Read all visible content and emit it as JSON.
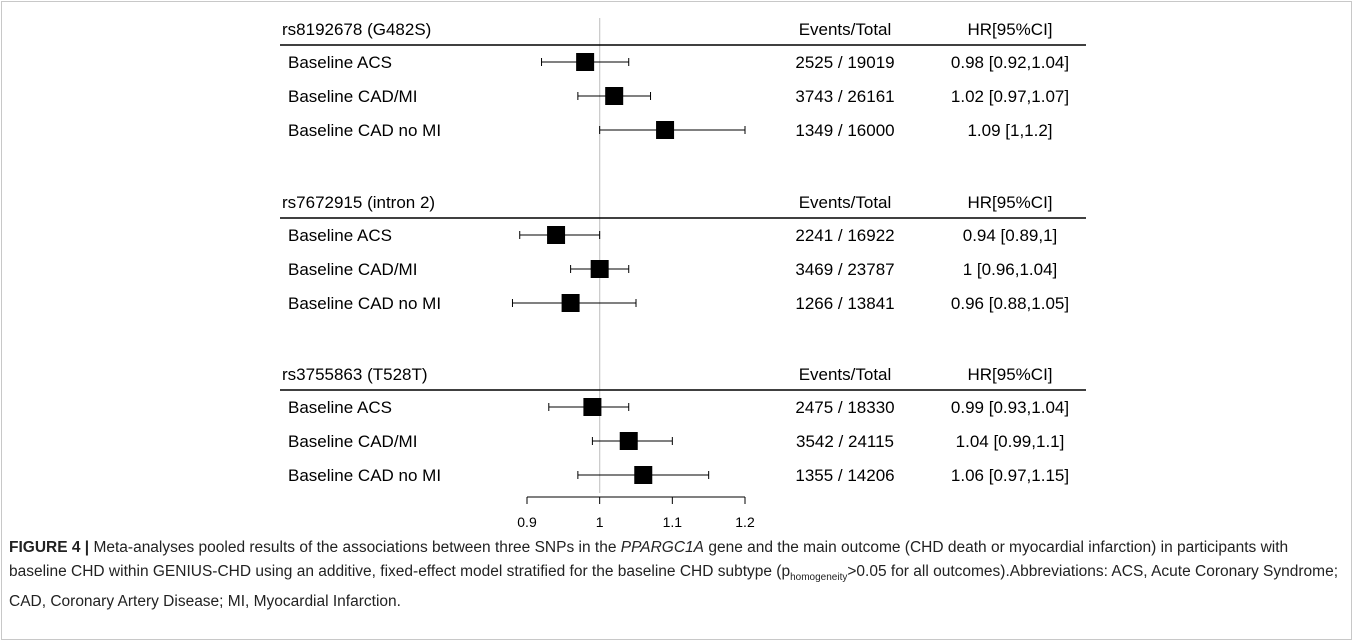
{
  "chart_data": {
    "type": "forest",
    "header": {
      "events_label": "Events/Total",
      "hr_label": "HR[95%CI]"
    },
    "x_axis": {
      "min": 0.9,
      "max": 1.2,
      "ticks": [
        "0.9",
        "1",
        "1.1",
        "1.2"
      ],
      "reference_line": 1
    },
    "groups": [
      {
        "title": "rs8192678 (G482S)",
        "rows": [
          {
            "label": "Baseline ACS",
            "hr": 0.98,
            "lo": 0.92,
            "hi": 1.04,
            "events": "2525 / 19019",
            "hr_text": "0.98 [0.92,1.04]"
          },
          {
            "label": "Baseline CAD/MI",
            "hr": 1.02,
            "lo": 0.97,
            "hi": 1.07,
            "events": "3743 / 26161",
            "hr_text": "1.02 [0.97,1.07]"
          },
          {
            "label": "Baseline CAD no MI",
            "hr": 1.09,
            "lo": 1.0,
            "hi": 1.2,
            "events": "1349 / 16000",
            "hr_text": "1.09 [1,1.2]"
          }
        ]
      },
      {
        "title": "rs7672915 (intron 2)",
        "rows": [
          {
            "label": "Baseline ACS",
            "hr": 0.94,
            "lo": 0.89,
            "hi": 1.0,
            "events": "2241 / 16922",
            "hr_text": "0.94 [0.89,1]"
          },
          {
            "label": "Baseline CAD/MI",
            "hr": 1.0,
            "lo": 0.96,
            "hi": 1.04,
            "events": "3469 / 23787",
            "hr_text": "1 [0.96,1.04]"
          },
          {
            "label": "Baseline CAD no MI",
            "hr": 0.96,
            "lo": 0.88,
            "hi": 1.05,
            "events": "1266 / 13841",
            "hr_text": "0.96 [0.88,1.05]"
          }
        ]
      },
      {
        "title": "rs3755863 (T528T)",
        "rows": [
          {
            "label": "Baseline ACS",
            "hr": 0.99,
            "lo": 0.93,
            "hi": 1.04,
            "events": "2475 / 18330",
            "hr_text": "0.99 [0.93,1.04]"
          },
          {
            "label": "Baseline CAD/MI",
            "hr": 1.04,
            "lo": 0.99,
            "hi": 1.1,
            "events": "3542 / 24115",
            "hr_text": "1.04 [0.99,1.1]"
          },
          {
            "label": "Baseline CAD no MI",
            "hr": 1.06,
            "lo": 0.97,
            "hi": 1.15,
            "events": "1355 / 14206",
            "hr_text": "1.06 [0.97,1.15]"
          }
        ]
      }
    ]
  },
  "caption": {
    "label": "FIGURE 4 |",
    "text_before_gene": " Meta-analyses pooled results of the associations between three SNPs in the ",
    "gene": "PPARGC1A",
    "text_after_gene": " gene and the main outcome (CHD death or myocardial infarction) in participants with baseline CHD within GENIUS-CHD using an additive, fixed-effect model stratified for the baseline CHD subtype (p",
    "subscript": "homogeneity",
    "text_after_sub": ">0.05 for all outcomes).Abbreviations: ACS, Acute Coronary Syndrome; CAD, Coronary Artery Disease; MI, Myocardial Infarction."
  }
}
